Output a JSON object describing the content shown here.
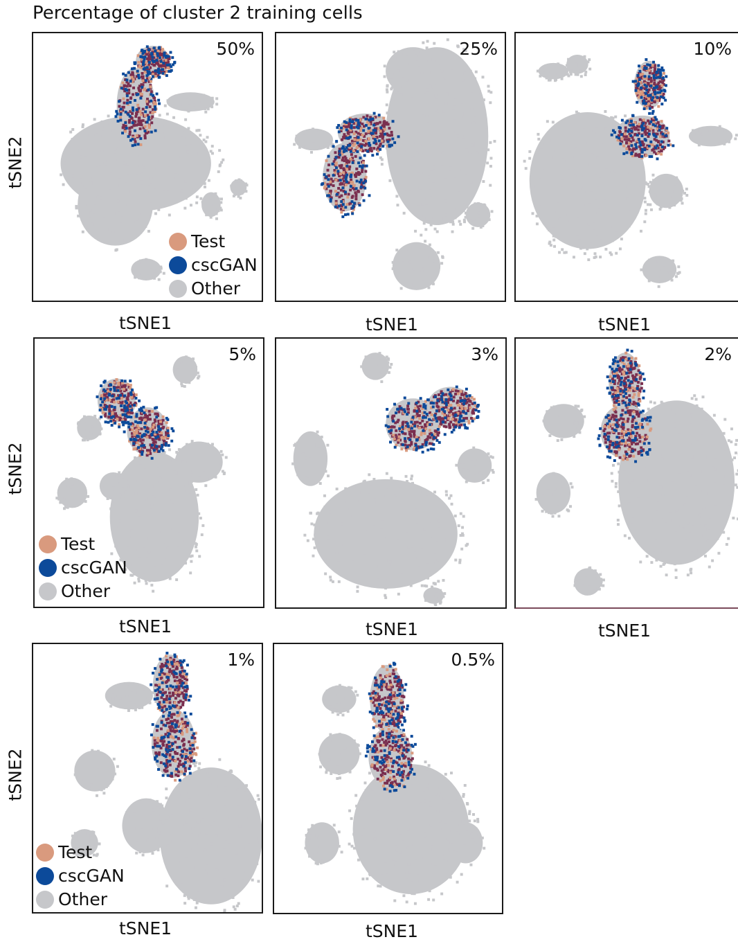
{
  "title": "Percentage of cluster 2 training cells",
  "chart_data": {
    "type": "scatter",
    "xlabel": "tSNE1",
    "ylabel": "tSNE2",
    "legend": {
      "placement": "bottom-left",
      "entries": [
        {
          "name": "Test",
          "color": "#d99a7e"
        },
        {
          "name": "cscGAN",
          "color": "#0c4a9a"
        },
        {
          "name": "Other",
          "color": "#c6c7ca"
        }
      ]
    },
    "overlap_color": "#7a2f4f",
    "panels": [
      {
        "label": "50%",
        "show_legend": true
      },
      {
        "label": "25%",
        "show_legend": false
      },
      {
        "label": "10%",
        "show_legend": false
      },
      {
        "label": "5%",
        "show_legend": true
      },
      {
        "label": "3%",
        "show_legend": false
      },
      {
        "label": "2%",
        "show_legend": false
      },
      {
        "label": "1%",
        "show_legend": true
      },
      {
        "label": "0.5%",
        "show_legend": false
      }
    ]
  }
}
